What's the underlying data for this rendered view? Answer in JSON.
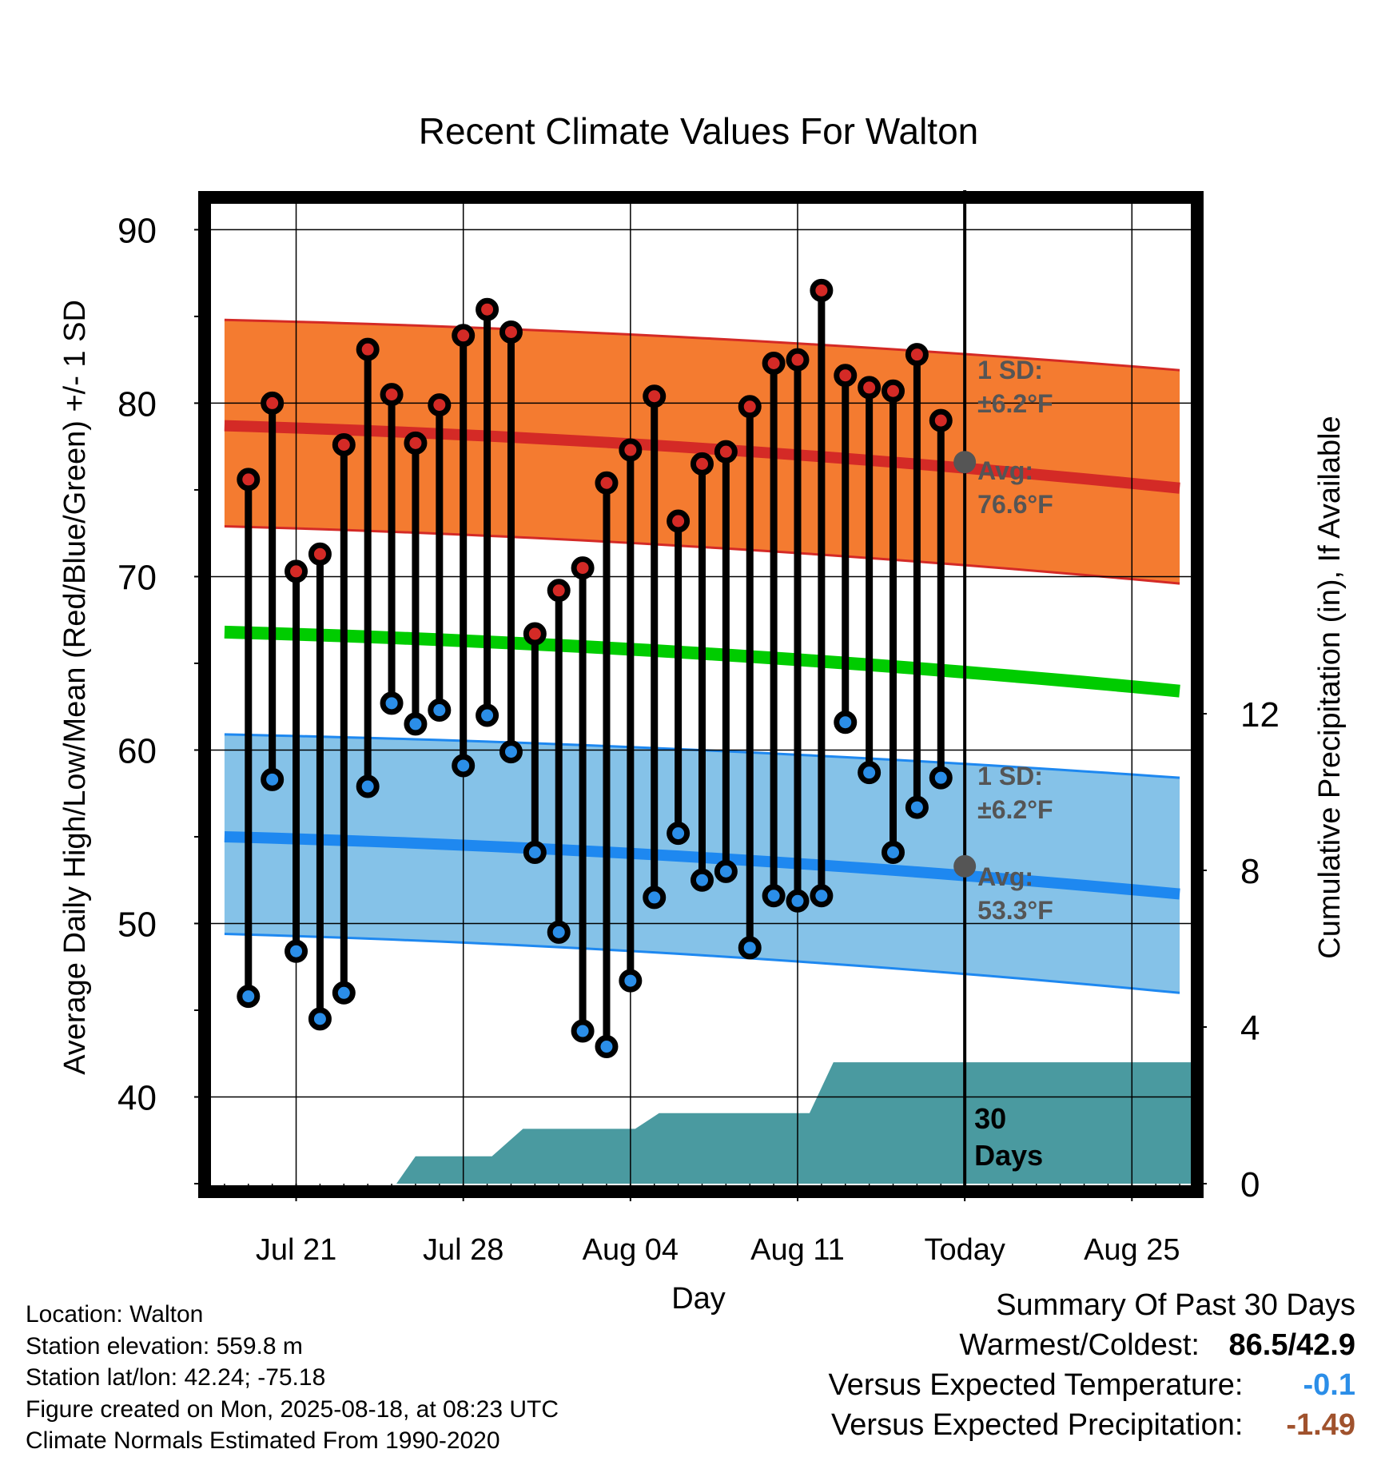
{
  "chart_data": {
    "type": "line",
    "title": "Recent Climate Values For Walton",
    "xlabel": "Day",
    "ylabel": "Average Daily High/Low/Mean (Red/Blue/Green) +/- 1 SD",
    "y2label": "Cumulative Precipitation (in), If Available",
    "x_domain_days": [
      -31.8,
      9.5
    ],
    "ylim": [
      35,
      92
    ],
    "y2lim": [
      0,
      24
    ],
    "grid": true,
    "x_ticks": [
      {
        "label": "Jul 21",
        "day": -28
      },
      {
        "label": "Jul 28",
        "day": -21
      },
      {
        "label": "Aug 04",
        "day": -14
      },
      {
        "label": "Aug 11",
        "day": -7
      },
      {
        "label": "Today",
        "day": 0
      },
      {
        "label": "Aug 25",
        "day": 7
      }
    ],
    "y_ticks": [
      40,
      50,
      60,
      70,
      80,
      90
    ],
    "y2_ticks": [
      0,
      4,
      8,
      12
    ],
    "normals": {
      "day": [
        -31,
        9
      ],
      "high_avg": [
        78.7,
        75.1
      ],
      "high_upper": [
        84.8,
        81.9
      ],
      "high_lower": [
        72.9,
        69.6
      ],
      "low_avg": [
        55.0,
        51.7
      ],
      "low_upper": [
        60.9,
        58.4
      ],
      "low_lower": [
        49.4,
        46.0
      ],
      "mean_avg": [
        66.8,
        63.4
      ]
    },
    "daily": {
      "day": [
        -30,
        -29,
        -28,
        -27,
        -26,
        -25,
        -24,
        -23,
        -22,
        -21,
        -20,
        -19,
        -18,
        -17,
        -16,
        -15,
        -14,
        -13,
        -12,
        -11,
        -10,
        -9,
        -8,
        -7,
        -6,
        -5,
        -4,
        -3,
        -2,
        -1
      ],
      "high": [
        75.6,
        80.0,
        70.3,
        71.3,
        77.6,
        83.1,
        80.5,
        77.7,
        79.9,
        83.9,
        85.4,
        84.1,
        66.7,
        69.2,
        70.5,
        75.4,
        77.3,
        80.4,
        73.2,
        76.5,
        77.2,
        79.8,
        82.3,
        82.5,
        86.5,
        81.6,
        80.9,
        80.7,
        82.8,
        79.0
      ],
      "low": [
        45.8,
        58.3,
        48.4,
        44.5,
        46.0,
        57.9,
        62.7,
        61.5,
        62.3,
        59.1,
        62.0,
        59.9,
        54.1,
        49.5,
        43.8,
        42.9,
        46.7,
        51.5,
        55.2,
        52.5,
        53.0,
        48.6,
        51.6,
        51.3,
        51.6,
        61.6,
        58.7,
        54.1,
        56.7,
        58.4
      ]
    },
    "precip_cumulative": {
      "day": [
        -31.5,
        -25.8,
        -24.8,
        -23.8,
        -23,
        -21,
        -19.8,
        -18.5,
        -17.5,
        -13.8,
        -12.8,
        -11.8,
        -7,
        -6.5,
        -5.5,
        9.5
      ],
      "value": [
        0,
        0,
        0,
        0,
        0.7,
        0.7,
        0.7,
        1.4,
        1.4,
        1.4,
        1.8,
        1.8,
        1.8,
        1.8,
        3.1,
        3.1
      ]
    },
    "today_markers": [
      {
        "label_sd": "1 SD:",
        "sd_value": "±6.2°F",
        "label_avg": "Avg:",
        "avg_value": "76.6°F",
        "avg": 76.6
      },
      {
        "label_sd": "1 SD:",
        "sd_value": "±6.2°F",
        "label_avg": "Avg:",
        "avg_value": "53.3°F",
        "avg": 53.3
      }
    ],
    "window_label": [
      "30",
      "Days"
    ],
    "colors": {
      "high_band": "#f47b30",
      "high_line": "#d42a26",
      "low_band": "#85c2e8",
      "low_line": "#1e88f0",
      "mean_line": "#00cc00",
      "precip": "#4a9aa0",
      "high_dot": "#d42a26",
      "low_dot": "#2b8ee8",
      "today_dot": "#555555"
    }
  },
  "footer": {
    "location": "Location: Walton",
    "elevation": "Station elevation: 559.8 m",
    "latlon": "Station lat/lon: 42.24; -75.18",
    "created": "Figure created on Mon, 2025-08-18, at 08:23 UTC",
    "normals": "Climate Normals Estimated From 1990-2020"
  },
  "summary": {
    "heading": "Summary Of Past 30 Days",
    "warm_cold_label": "Warmest/Coldest:",
    "warm_cold_value": "86.5/42.9",
    "temp_label": "Versus Expected Temperature:",
    "temp_value": "-0.1",
    "temp_color": "#2b8ee8",
    "precip_label": "Versus Expected Precipitation:",
    "precip_value": "-1.49",
    "precip_color": "#a0522d"
  }
}
